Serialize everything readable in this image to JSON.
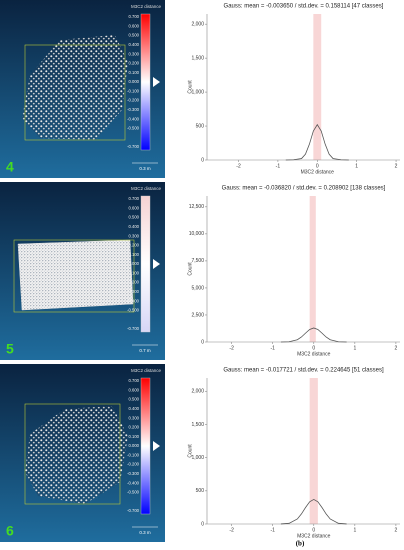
{
  "chart_data": [
    {
      "type": "line",
      "title": "Gauss: mean = -0.003650 / std.dev. = 0.158114 [47 classes]",
      "x_label": "M3C2 distance",
      "y_label": "Count",
      "x": [
        -0.8,
        -0.6,
        -0.4,
        -0.3,
        -0.2,
        -0.1,
        0,
        0.1,
        0.2,
        0.3,
        0.4,
        0.6,
        0.8
      ],
      "values": [
        0,
        4,
        21,
        86,
        233,
        426,
        520,
        426,
        233,
        86,
        21,
        4,
        0
      ],
      "color": "#555555",
      "band": [
        -0.1,
        0.1
      ],
      "band_color": "#f8d6d6",
      "xlim": [
        -2.8,
        2.1
      ],
      "xticks": [
        -2,
        -1,
        0,
        1,
        2
      ],
      "ylim": [
        0,
        2150
      ],
      "yticks": [
        0,
        500,
        {
          "value": 1000,
          "label": "1,000"
        },
        {
          "value": 1500,
          "label": "1,500"
        },
        {
          "value": 2000,
          "label": "2,000"
        }
      ]
    },
    {
      "type": "line",
      "title": "Gauss: mean = -0.036820 / std.dev. = 0.208902 [138 classes]",
      "x_label": "M3C2 distance",
      "y_label": "Count",
      "x": [
        -0.8,
        -0.6,
        -0.4,
        -0.3,
        -0.2,
        -0.1,
        0,
        0.1,
        0.2,
        0.3,
        0.4,
        0.6,
        0.8
      ],
      "values": [
        1,
        21,
        208,
        464,
        822,
        1160,
        1300,
        1160,
        822,
        464,
        208,
        21,
        1
      ],
      "color": "#555555",
      "band": [
        -0.1,
        0.05
      ],
      "band_color": "#f8d6d6",
      "xlim": [
        -2.6,
        2.1
      ],
      "xticks": [
        -2,
        -1,
        0,
        1,
        2
      ],
      "ylim": [
        0,
        13500
      ],
      "yticks": [
        0,
        {
          "value": 2500,
          "label": "2,500"
        },
        {
          "value": 5000,
          "label": "5,000"
        },
        {
          "value": 7500,
          "label": "7,500"
        },
        {
          "value": 10000,
          "label": "10,000"
        },
        {
          "value": 12500,
          "label": "12,500"
        }
      ]
    },
    {
      "type": "line",
      "title": "Gauss: mean = -0.017721 / std.dev. = 0.224645 [51 classes]",
      "x_label": "M3C2 distance",
      "y_label": "Count",
      "x": [
        -0.8,
        -0.6,
        -0.4,
        -0.3,
        -0.2,
        -0.1,
        0,
        0.1,
        0.2,
        0.3,
        0.4,
        0.6,
        0.8
      ],
      "values": [
        1,
        10,
        76,
        152,
        249,
        335,
        370,
        335,
        249,
        152,
        76,
        10,
        1
      ],
      "color": "#555555",
      "band": [
        -0.1,
        0.1
      ],
      "band_color": "#f8d6d6",
      "xlim": [
        -2.6,
        2.1
      ],
      "xticks": [
        -2,
        -1,
        0,
        1,
        2
      ],
      "ylim": [
        0,
        2200
      ],
      "yticks": [
        0,
        500,
        {
          "value": 1000,
          "label": "1,000"
        },
        {
          "value": 1500,
          "label": "1,500"
        },
        {
          "value": 2000,
          "label": "2,000"
        }
      ]
    }
  ],
  "panels": [
    {
      "number": "4",
      "scale_title": "M3C2 distance",
      "scale_bar": "0.3 m",
      "colorbar": [
        "#ff0000",
        "#ffffff",
        "#0000ff"
      ],
      "scale_labels": [
        "0.700",
        "0.600",
        "0.500",
        "0.400",
        "0.300",
        "0.200",
        "0.100",
        "0.000",
        "-0.100",
        "-0.200",
        "-0.300",
        "-0.400",
        "-0.500",
        "-0.700"
      ]
    },
    {
      "number": "5",
      "scale_title": "M3C2 distance",
      "scale_bar": "0.7 m",
      "colorbar": [
        "#f6d2d2",
        "#ffffff",
        "#d6d6f6"
      ],
      "scale_labels": [
        "0.700",
        "0.600",
        "0.500",
        "0.400",
        "0.300",
        "0.200",
        "0.100",
        "0.000",
        "-0.100",
        "-0.200",
        "-0.300",
        "-0.400",
        "-0.500",
        "-0.700"
      ]
    },
    {
      "number": "6",
      "scale_title": "M3C2 distance",
      "scale_bar": "0.3 m",
      "colorbar": [
        "#ff0000",
        "#ffffff",
        "#0000ff"
      ],
      "scale_labels": [
        "0.700",
        "0.600",
        "0.500",
        "0.400",
        "0.300",
        "0.200",
        "0.100",
        "0.000",
        "-0.100",
        "-0.200",
        "-0.300",
        "-0.400",
        "-0.500",
        "-0.700"
      ]
    }
  ],
  "caption": "(b)"
}
